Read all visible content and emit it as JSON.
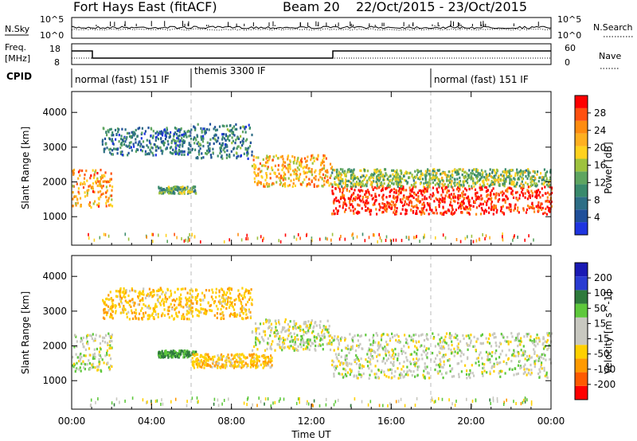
{
  "header": {
    "station": "Fort Hays East (fitACF)",
    "beam": "Beam 20",
    "dates": "22/Oct/2015 - 23/Oct/2015"
  },
  "noise_panel": {
    "left_label": "N.Sky",
    "right_label": "N.Search",
    "left_ticks": [
      "10^5",
      "10^0"
    ],
    "right_ticks": [
      "10^5",
      "10^0"
    ]
  },
  "freq_panel": {
    "left_label_1": "Freq.",
    "left_label_2": "[MHz]",
    "right_label": "Nave",
    "left_ticks": [
      "18",
      "8"
    ],
    "right_ticks": [
      "60",
      "0"
    ]
  },
  "cpid": {
    "label": "CPID",
    "segments": [
      {
        "text": "normal (fast) 151 IF",
        "start_hour": 0
      },
      {
        "text": "themis 3300 IF",
        "start_hour": 6
      },
      {
        "text": "normal (fast) 151 IF",
        "start_hour": 18
      }
    ]
  },
  "colors": {
    "power": [
      "#1f35e0",
      "#20509a",
      "#2e6e86",
      "#3a8a6c",
      "#5ea560",
      "#9ec23e",
      "#ffd21e",
      "#ffb020",
      "#ff8c10",
      "#ff5010",
      "#ff0000"
    ],
    "velocity": [
      "#ff0000",
      "#ff5a00",
      "#ff9a00",
      "#ffd000",
      "#c8c8c0",
      "#c8c8c0",
      "#5ec83c",
      "#2e7a3c",
      "#2a3cd2",
      "#1a1ab4"
    ]
  },
  "chart_data": [
    {
      "type": "heatmap",
      "title": "Fort Hays East (fitACF)",
      "xlabel": "Time UT",
      "ylabel": "Slant Range [km]",
      "x_ticks": [
        "00:00",
        "04:00",
        "08:00",
        "12:00",
        "16:00",
        "20:00",
        "00:00"
      ],
      "x_range_hours": [
        0,
        24
      ],
      "y_ticks": [
        1000,
        2000,
        3000,
        4000
      ],
      "ylim": [
        180,
        4600
      ],
      "colorbar_label": "Power [dB]",
      "colorbar_ticks": [
        "4",
        "8",
        "12",
        "16",
        "20",
        "24",
        "28"
      ],
      "colorbar_range": [
        0,
        30
      ],
      "series": [
        {
          "name": "Power",
          "structures": [
            {
              "t0": 0.0,
              "t1": 2.0,
              "r0": 1300,
              "r1": 2400,
              "value": 22
            },
            {
              "t0": 1.5,
              "t1": 6.0,
              "r0": 2800,
              "r1": 3600,
              "value": 7
            },
            {
              "t0": 6.0,
              "t1": 9.0,
              "r0": 2700,
              "r1": 3700,
              "value": 8
            },
            {
              "t0": 4.3,
              "t1": 6.2,
              "r0": 1700,
              "r1": 1900,
              "value": 12
            },
            {
              "t0": 9.0,
              "t1": 13.0,
              "r0": 1900,
              "r1": 2800,
              "value": 20
            },
            {
              "t0": 13.0,
              "t1": 24.0,
              "r0": 1100,
              "r1": 1900,
              "value": 28
            },
            {
              "t0": 13.0,
              "t1": 24.0,
              "r0": 1900,
              "r1": 2400,
              "value": 14
            }
          ]
        }
      ]
    },
    {
      "type": "heatmap",
      "xlabel": "Time UT",
      "ylabel": "Slant Range [km]",
      "x_ticks": [
        "00:00",
        "04:00",
        "08:00",
        "12:00",
        "16:00",
        "20:00",
        "00:00"
      ],
      "x_range_hours": [
        0,
        24
      ],
      "y_ticks": [
        1000,
        2000,
        3000,
        4000
      ],
      "ylim": [
        180,
        4600
      ],
      "colorbar_label": "Velocity [m s^-1]",
      "colorbar_ticks": [
        "200",
        "100",
        "50",
        "15",
        "-15",
        "-50",
        "-100",
        "-200"
      ],
      "colorbar_range": [
        -250,
        250
      ],
      "series": [
        {
          "name": "Velocity",
          "structures": [
            {
              "t0": 0.0,
              "t1": 2.0,
              "r0": 1300,
              "r1": 2400,
              "value": 0
            },
            {
              "t0": 1.5,
              "t1": 9.0,
              "r0": 2800,
              "r1": 3700,
              "value": -40
            },
            {
              "t0": 4.3,
              "t1": 6.2,
              "r0": 1700,
              "r1": 1900,
              "value": 60
            },
            {
              "t0": 6.0,
              "t1": 10.0,
              "r0": 1400,
              "r1": 1800,
              "value": -40
            },
            {
              "t0": 9.0,
              "t1": 13.0,
              "r0": 1900,
              "r1": 2800,
              "value": 0
            },
            {
              "t0": 13.0,
              "t1": 24.0,
              "r0": 1100,
              "r1": 2400,
              "value": 0
            }
          ]
        }
      ]
    }
  ]
}
